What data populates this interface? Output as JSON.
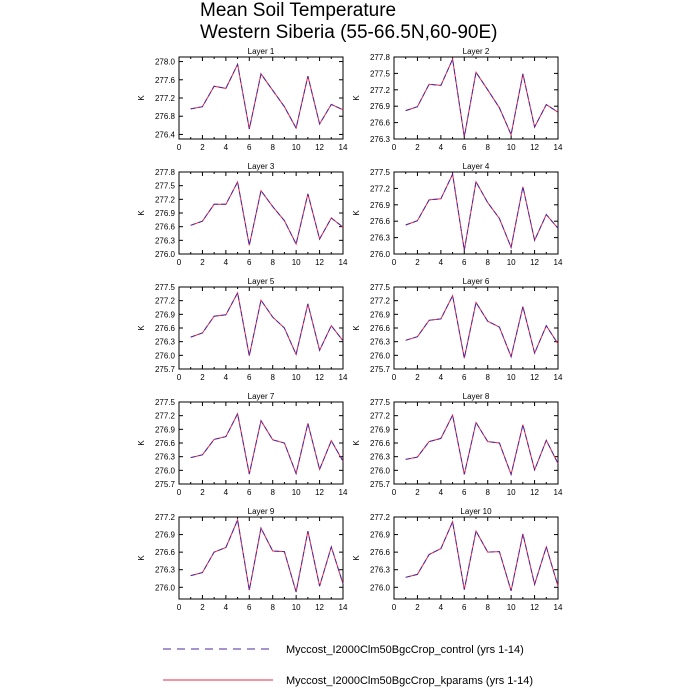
{
  "title": {
    "line1": "Mean Soil Temperature",
    "line2": "Western Siberia (55-66.5N,60-90E)"
  },
  "colors": {
    "control": "#4b2a9f",
    "kparams": "#e8294a"
  },
  "legend": [
    {
      "label": "Myccost_I2000Clm50BgcCrop_control (yrs 1-14)",
      "style": "dashed",
      "color": "#4b2a9f"
    },
    {
      "label": "Myccost_I2000Clm50BgcCrop_kparams (yrs 1-14)",
      "style": "solid",
      "color": "#e8294a"
    }
  ],
  "chart_data": [
    {
      "type": "line",
      "title": "Layer 1",
      "ylabel": "K",
      "xlim": [
        0,
        14
      ],
      "ylim": [
        276.3,
        278.1
      ],
      "xticks": [
        0,
        2,
        4,
        6,
        8,
        10,
        12,
        14
      ],
      "yticks": [
        "276.4",
        "276.8",
        "277.2",
        "277.6",
        "278.0"
      ],
      "x": [
        1,
        2,
        3,
        4,
        5,
        6,
        7,
        8,
        9,
        10,
        11,
        12,
        13,
        14
      ],
      "series": [
        {
          "name": "Myccost_I2000Clm50BgcCrop_control (yrs 1-14)",
          "values": [
            276.96,
            277.01,
            277.46,
            277.41,
            277.94,
            276.52,
            277.73,
            277.37,
            277.01,
            276.54,
            277.68,
            276.63,
            277.06,
            276.94
          ]
        },
        {
          "name": "Myccost_I2000Clm50BgcCrop_kparams (yrs 1-14)",
          "values": [
            276.96,
            277.01,
            277.46,
            277.41,
            277.94,
            276.52,
            277.73,
            277.37,
            277.01,
            276.54,
            277.68,
            276.63,
            277.06,
            276.94
          ]
        }
      ]
    },
    {
      "type": "line",
      "title": "Layer 2",
      "ylabel": "K",
      "xlim": [
        0,
        14
      ],
      "ylim": [
        276.3,
        277.8
      ],
      "xticks": [
        0,
        2,
        4,
        6,
        8,
        10,
        12,
        14
      ],
      "yticks": [
        "276.3",
        "276.6",
        "276.9",
        "277.2",
        "277.5",
        "277.8"
      ],
      "x": [
        1,
        2,
        3,
        4,
        5,
        6,
        7,
        8,
        9,
        10,
        11,
        12,
        13,
        14
      ],
      "series": [
        {
          "name": "Myccost_I2000Clm50BgcCrop_control (yrs 1-14)",
          "values": [
            276.82,
            276.89,
            277.3,
            277.28,
            277.76,
            276.34,
            277.52,
            277.2,
            276.87,
            276.38,
            277.49,
            276.52,
            276.93,
            276.79
          ]
        },
        {
          "name": "Myccost_I2000Clm50BgcCrop_kparams (yrs 1-14)",
          "values": [
            276.82,
            276.89,
            277.3,
            277.28,
            277.76,
            276.34,
            277.52,
            277.2,
            276.87,
            276.38,
            277.49,
            276.52,
            276.93,
            276.79
          ]
        }
      ]
    },
    {
      "type": "line",
      "title": "Layer 3",
      "ylabel": "K",
      "xlim": [
        0,
        14
      ],
      "ylim": [
        276.0,
        277.8
      ],
      "xticks": [
        0,
        2,
        4,
        6,
        8,
        10,
        12,
        14
      ],
      "yticks": [
        "276.0",
        "276.3",
        "276.6",
        "276.9",
        "277.2",
        "277.5",
        "277.8"
      ],
      "x": [
        1,
        2,
        3,
        4,
        5,
        6,
        7,
        8,
        9,
        10,
        11,
        12,
        13,
        14
      ],
      "series": [
        {
          "name": "Myccost_I2000Clm50BgcCrop_control (yrs 1-14)",
          "values": [
            276.63,
            276.72,
            277.09,
            277.09,
            277.58,
            276.19,
            277.39,
            277.04,
            276.73,
            276.22,
            277.32,
            276.33,
            276.79,
            276.59
          ]
        },
        {
          "name": "Myccost_I2000Clm50BgcCrop_kparams (yrs 1-14)",
          "values": [
            276.63,
            276.72,
            277.09,
            277.09,
            277.58,
            276.19,
            277.39,
            277.04,
            276.73,
            276.22,
            277.32,
            276.33,
            276.79,
            276.59
          ]
        }
      ]
    },
    {
      "type": "line",
      "title": "Layer 4",
      "ylabel": "K",
      "xlim": [
        0,
        14
      ],
      "ylim": [
        276.0,
        277.5
      ],
      "xticks": [
        0,
        2,
        4,
        6,
        8,
        10,
        12,
        14
      ],
      "yticks": [
        "276.0",
        "276.3",
        "276.6",
        "276.9",
        "277.2",
        "277.5"
      ],
      "x": [
        1,
        2,
        3,
        4,
        5,
        6,
        7,
        8,
        9,
        10,
        11,
        12,
        13,
        14
      ],
      "series": [
        {
          "name": "Myccost_I2000Clm50BgcCrop_control (yrs 1-14)",
          "values": [
            276.53,
            276.61,
            276.99,
            277.01,
            277.46,
            276.07,
            277.32,
            276.94,
            276.65,
            276.12,
            277.23,
            276.25,
            276.72,
            276.47
          ]
        },
        {
          "name": "Myccost_I2000Clm50BgcCrop_kparams (yrs 1-14)",
          "values": [
            276.53,
            276.61,
            276.99,
            277.01,
            277.46,
            276.07,
            277.32,
            276.94,
            276.65,
            276.12,
            277.23,
            276.25,
            276.72,
            276.47
          ]
        }
      ]
    },
    {
      "type": "line",
      "title": "Layer 5",
      "ylabel": "K",
      "xlim": [
        0,
        14
      ],
      "ylim": [
        275.7,
        277.5
      ],
      "xticks": [
        0,
        2,
        4,
        6,
        8,
        10,
        12,
        14
      ],
      "yticks": [
        "275.7",
        "276.0",
        "276.3",
        "276.6",
        "276.9",
        "277.2",
        "277.5"
      ],
      "x": [
        1,
        2,
        3,
        4,
        5,
        6,
        7,
        8,
        9,
        10,
        11,
        12,
        13,
        14
      ],
      "series": [
        {
          "name": "Myccost_I2000Clm50BgcCrop_control (yrs 1-14)",
          "values": [
            276.4,
            276.49,
            276.86,
            276.89,
            277.37,
            275.99,
            277.21,
            276.84,
            276.6,
            276.02,
            277.13,
            276.11,
            276.65,
            276.32
          ]
        },
        {
          "name": "Myccost_I2000Clm50BgcCrop_kparams (yrs 1-14)",
          "values": [
            276.4,
            276.49,
            276.86,
            276.89,
            277.37,
            275.99,
            277.21,
            276.84,
            276.6,
            276.02,
            277.13,
            276.11,
            276.65,
            276.32
          ]
        }
      ]
    },
    {
      "type": "line",
      "title": "Layer 6",
      "ylabel": "K",
      "xlim": [
        0,
        14
      ],
      "ylim": [
        275.7,
        277.5
      ],
      "xticks": [
        0,
        2,
        4,
        6,
        8,
        10,
        12,
        14
      ],
      "yticks": [
        "275.7",
        "276.0",
        "276.3",
        "276.6",
        "276.9",
        "277.2",
        "277.5"
      ],
      "x": [
        1,
        2,
        3,
        4,
        5,
        6,
        7,
        8,
        9,
        10,
        11,
        12,
        13,
        14
      ],
      "series": [
        {
          "name": "Myccost_I2000Clm50BgcCrop_control (yrs 1-14)",
          "values": [
            276.33,
            276.41,
            276.77,
            276.8,
            277.31,
            275.94,
            277.16,
            276.75,
            276.62,
            275.97,
            277.07,
            276.05,
            276.65,
            276.25
          ]
        },
        {
          "name": "Myccost_I2000Clm50BgcCrop_kparams (yrs 1-14)",
          "values": [
            276.33,
            276.41,
            276.77,
            276.8,
            277.31,
            275.94,
            277.16,
            276.75,
            276.62,
            275.97,
            277.07,
            276.05,
            276.65,
            276.25
          ]
        }
      ]
    },
    {
      "type": "line",
      "title": "Layer 7",
      "ylabel": "K",
      "xlim": [
        0,
        14
      ],
      "ylim": [
        275.7,
        277.5
      ],
      "xticks": [
        0,
        2,
        4,
        6,
        8,
        10,
        12,
        14
      ],
      "yticks": [
        "275.7",
        "276.0",
        "276.3",
        "276.6",
        "276.9",
        "277.2",
        "277.5"
      ],
      "x": [
        1,
        2,
        3,
        4,
        5,
        6,
        7,
        8,
        9,
        10,
        11,
        12,
        13,
        14
      ],
      "series": [
        {
          "name": "Myccost_I2000Clm50BgcCrop_control (yrs 1-14)",
          "values": [
            276.28,
            276.34,
            276.68,
            276.74,
            277.24,
            275.92,
            277.09,
            276.67,
            276.6,
            275.93,
            277.03,
            276.02,
            276.65,
            276.2
          ]
        },
        {
          "name": "Myccost_I2000Clm50BgcCrop_kparams (yrs 1-14)",
          "values": [
            276.28,
            276.34,
            276.68,
            276.74,
            277.24,
            275.92,
            277.09,
            276.67,
            276.6,
            275.93,
            277.03,
            276.02,
            276.65,
            276.2
          ]
        }
      ]
    },
    {
      "type": "line",
      "title": "Layer 8",
      "ylabel": "K",
      "xlim": [
        0,
        14
      ],
      "ylim": [
        275.7,
        277.5
      ],
      "xticks": [
        0,
        2,
        4,
        6,
        8,
        10,
        12,
        14
      ],
      "yticks": [
        "275.7",
        "276.0",
        "276.3",
        "276.6",
        "276.9",
        "277.2",
        "277.5"
      ],
      "x": [
        1,
        2,
        3,
        4,
        5,
        6,
        7,
        8,
        9,
        10,
        11,
        12,
        13,
        14
      ],
      "series": [
        {
          "name": "Myccost_I2000Clm50BgcCrop_control (yrs 1-14)",
          "values": [
            276.24,
            276.29,
            276.63,
            276.7,
            277.21,
            275.91,
            277.05,
            276.63,
            276.6,
            275.91,
            277.0,
            276.01,
            276.66,
            276.15
          ]
        },
        {
          "name": "Myccost_I2000Clm50BgcCrop_kparams (yrs 1-14)",
          "values": [
            276.24,
            276.29,
            276.63,
            276.7,
            277.21,
            275.91,
            277.05,
            276.63,
            276.6,
            275.91,
            277.0,
            276.01,
            276.66,
            276.15
          ]
        }
      ]
    },
    {
      "type": "line",
      "title": "Layer 9",
      "ylabel": "K",
      "xlim": [
        0,
        14
      ],
      "ylim": [
        275.8,
        277.2
      ],
      "xticks": [
        0,
        2,
        4,
        6,
        8,
        10,
        12,
        14
      ],
      "yticks": [
        "276.0",
        "276.3",
        "276.6",
        "276.9",
        "277.2"
      ],
      "x": [
        1,
        2,
        3,
        4,
        5,
        6,
        7,
        8,
        9,
        10,
        11,
        12,
        13,
        14
      ],
      "series": [
        {
          "name": "Myccost_I2000Clm50BgcCrop_control (yrs 1-14)",
          "values": [
            276.2,
            276.25,
            276.6,
            276.68,
            277.15,
            275.95,
            277.01,
            276.62,
            276.61,
            275.92,
            276.96,
            276.02,
            276.69,
            276.06
          ]
        },
        {
          "name": "Myccost_I2000Clm50BgcCrop_kparams (yrs 1-14)",
          "values": [
            276.2,
            276.25,
            276.6,
            276.68,
            277.15,
            275.95,
            277.01,
            276.62,
            276.61,
            275.92,
            276.96,
            276.02,
            276.69,
            276.06
          ]
        }
      ]
    },
    {
      "type": "line",
      "title": "Layer 10",
      "ylabel": "K",
      "xlim": [
        0,
        14
      ],
      "ylim": [
        275.8,
        277.2
      ],
      "xticks": [
        0,
        2,
        4,
        6,
        8,
        10,
        12,
        14
      ],
      "yticks": [
        "276.0",
        "276.3",
        "276.6",
        "276.9",
        "277.2"
      ],
      "x": [
        1,
        2,
        3,
        4,
        5,
        6,
        7,
        8,
        9,
        10,
        11,
        12,
        13,
        14
      ],
      "series": [
        {
          "name": "Myccost_I2000Clm50BgcCrop_control (yrs 1-14)",
          "values": [
            276.17,
            276.22,
            276.56,
            276.66,
            277.12,
            275.96,
            276.96,
            276.6,
            276.61,
            275.94,
            276.91,
            276.05,
            276.69,
            276.02
          ]
        },
        {
          "name": "Myccost_I2000Clm50BgcCrop_kparams (yrs 1-14)",
          "values": [
            276.17,
            276.22,
            276.56,
            276.66,
            277.12,
            275.96,
            276.96,
            276.6,
            276.61,
            275.94,
            276.91,
            276.05,
            276.69,
            276.02
          ]
        }
      ]
    }
  ]
}
